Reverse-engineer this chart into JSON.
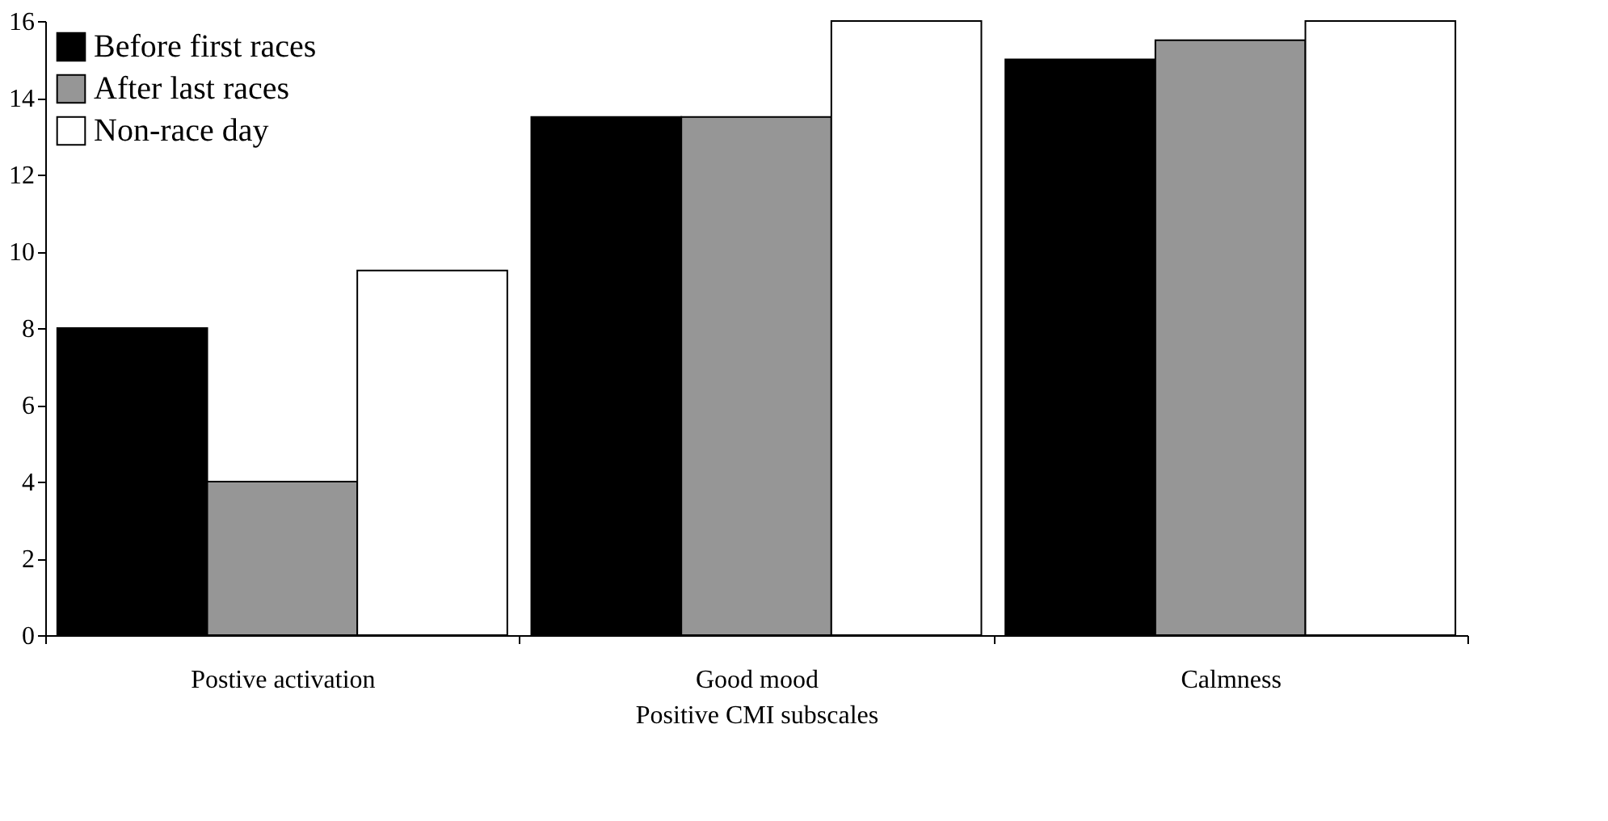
{
  "chart_data": {
    "type": "bar",
    "xlabel": "Positive CMI subscales",
    "categories": [
      "Postive activation",
      "Good mood",
      "Calmness"
    ],
    "series": [
      {
        "name": "Before first races",
        "color": "#000000",
        "values": [
          8,
          13.5,
          15
        ]
      },
      {
        "name": "After last races",
        "color": "#969696",
        "values": [
          4,
          13.5,
          15.5
        ]
      },
      {
        "name": "Non-race day",
        "color": "#ffffff",
        "values": [
          9.5,
          16,
          16
        ]
      }
    ],
    "ylim": [
      0,
      16
    ],
    "yticks": [
      0,
      2,
      4,
      6,
      8,
      10,
      12,
      14,
      16
    ],
    "grid": false,
    "legend": "top left"
  }
}
